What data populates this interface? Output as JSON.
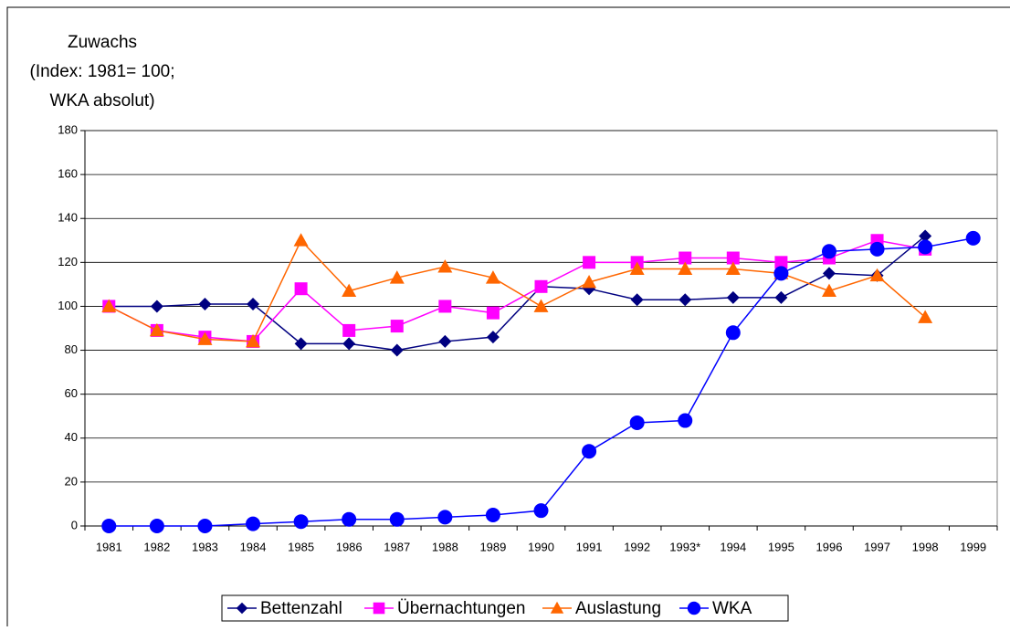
{
  "chart_data": {
    "type": "line",
    "y_label": [
      "Zuwachs",
      "(Index: 1981= 100;",
      "WKA absolut)"
    ],
    "categories": [
      "1981",
      "1982",
      "1983",
      "1984",
      "1985",
      "1986",
      "1987",
      "1988",
      "1989",
      "1990",
      "1991",
      "1992",
      "1993*",
      "1994",
      "1995",
      "1996",
      "1997",
      "1998",
      "1999"
    ],
    "series": [
      {
        "name": "Bettenzahl",
        "color": "#000080",
        "marker": "diamond",
        "values": [
          100,
          100,
          101,
          101,
          83,
          83,
          80,
          84,
          86,
          109,
          108,
          103,
          103,
          104,
          104,
          115,
          114,
          132,
          null
        ]
      },
      {
        "name": "Übernachtungen",
        "color": "#ff00ff",
        "marker": "square",
        "values": [
          100,
          89,
          86,
          84,
          108,
          89,
          91,
          100,
          97,
          109,
          120,
          120,
          122,
          122,
          120,
          122,
          130,
          126,
          null
        ]
      },
      {
        "name": "Auslastung",
        "color": "#ff6600",
        "marker": "triangle",
        "values": [
          100,
          89,
          85,
          84,
          130,
          107,
          113,
          118,
          113,
          100,
          111,
          117,
          117,
          117,
          115,
          107,
          114,
          95,
          null
        ]
      },
      {
        "name": "WKA",
        "color": "#0000ff",
        "marker": "circle",
        "values": [
          0,
          0,
          0,
          1,
          2,
          3,
          3,
          4,
          5,
          7,
          34,
          47,
          48,
          88,
          115,
          125,
          126,
          127,
          131
        ]
      }
    ],
    "ylim": [
      0,
      180
    ],
    "yticks": [
      0,
      20,
      40,
      60,
      80,
      100,
      120,
      140,
      160,
      180
    ],
    "grid": true
  }
}
